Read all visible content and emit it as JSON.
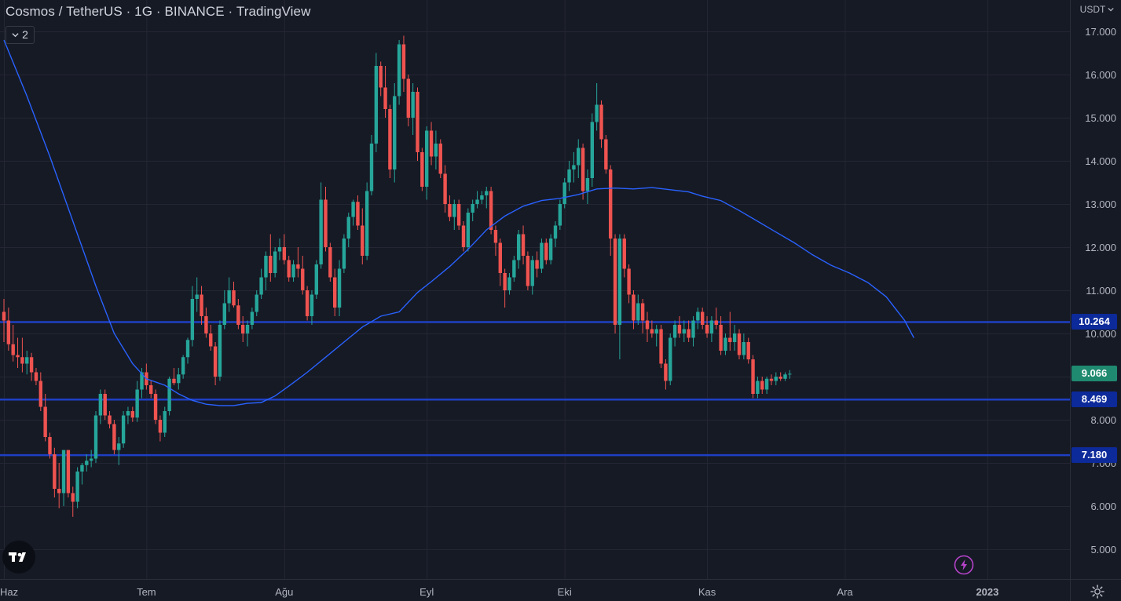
{
  "header": {
    "title": "Cosmos / TetherUS · 1G · BINANCE · TradingView",
    "indicator_count": "2",
    "currency": "USDT"
  },
  "colors": {
    "background": "#161a25",
    "grid": "#242733",
    "up": "#26a69a",
    "down": "#ef5350",
    "ma_line": "#2962ff",
    "hline": "#1e3fc4",
    "last_price_bg": "#1f8a70",
    "hline_label_bg": "#0d2a9a",
    "axis_text": "#b2b5be"
  },
  "icons": {
    "logo": "tradingview-logo-icon",
    "alert": "lightning-icon",
    "settings": "gear-icon",
    "chevron": "chevron-down-icon"
  },
  "chart_data": {
    "type": "candlestick",
    "title": "Cosmos / TetherUS · 1G · BINANCE · TradingView",
    "y_axis": {
      "ticks": [
        "17.000",
        "16.000",
        "15.000",
        "14.000",
        "13.000",
        "12.000",
        "11.000",
        "10.000",
        "8.000",
        "7.000",
        "6.000",
        "5.000"
      ],
      "tick_values": [
        17,
        16,
        15,
        14,
        13,
        12,
        11,
        10,
        8,
        7,
        6,
        5
      ],
      "range": [
        4.5,
        17.3
      ]
    },
    "x_axis": {
      "labels": [
        "Haz",
        "Tem",
        "Ağu",
        "Eyl",
        "Eki",
        "Kas",
        "Ara",
        "2023"
      ],
      "label_days": [
        0,
        31,
        61,
        92,
        122,
        153,
        183,
        214
      ]
    },
    "horizontal_lines": [
      10.264,
      8.469,
      7.18
    ],
    "labels": [
      {
        "text": "10.264",
        "value": 10.264,
        "kind": "line"
      },
      {
        "text": "9.066",
        "value": 9.066,
        "kind": "last"
      },
      {
        "text": "8.469",
        "value": 8.469,
        "kind": "line"
      },
      {
        "text": "7.180",
        "value": 7.18,
        "kind": "line"
      }
    ],
    "last_price": 9.066,
    "moving_average": [
      [
        0,
        16.8
      ],
      [
        5,
        15.5
      ],
      [
        10,
        14.1
      ],
      [
        15,
        12.6
      ],
      [
        20,
        11.1
      ],
      [
        24,
        10.0
      ],
      [
        28,
        9.3
      ],
      [
        31,
        8.95
      ],
      [
        35,
        8.8
      ],
      [
        38,
        8.6
      ],
      [
        41,
        8.45
      ],
      [
        44,
        8.36
      ],
      [
        47,
        8.33
      ],
      [
        50,
        8.33
      ],
      [
        53,
        8.38
      ],
      [
        56,
        8.4
      ],
      [
        59,
        8.55
      ],
      [
        62,
        8.78
      ],
      [
        66,
        9.1
      ],
      [
        70,
        9.45
      ],
      [
        74,
        9.8
      ],
      [
        78,
        10.15
      ],
      [
        82,
        10.4
      ],
      [
        86,
        10.5
      ],
      [
        90,
        10.95
      ],
      [
        93,
        11.2
      ],
      [
        97,
        11.55
      ],
      [
        101,
        11.95
      ],
      [
        105,
        12.4
      ],
      [
        109,
        12.72
      ],
      [
        113,
        12.95
      ],
      [
        117,
        13.08
      ],
      [
        121,
        13.13
      ],
      [
        125,
        13.22
      ],
      [
        129,
        13.35
      ],
      [
        133,
        13.37
      ],
      [
        137,
        13.35
      ],
      [
        141,
        13.38
      ],
      [
        145,
        13.33
      ],
      [
        149,
        13.28
      ],
      [
        152,
        13.18
      ],
      [
        156,
        13.08
      ],
      [
        160,
        12.85
      ],
      [
        164,
        12.6
      ],
      [
        168,
        12.35
      ],
      [
        172,
        12.1
      ],
      [
        176,
        11.82
      ],
      [
        180,
        11.58
      ],
      [
        184,
        11.4
      ],
      [
        188,
        11.18
      ],
      [
        192,
        10.85
      ],
      [
        196,
        10.3
      ],
      [
        198,
        9.9
      ]
    ],
    "ohlc": [
      {
        "o": 10.5,
        "h": 10.8,
        "l": 9.8,
        "c": 10.3
      },
      {
        "o": 10.3,
        "h": 10.6,
        "l": 9.6,
        "c": 9.75
      },
      {
        "o": 9.75,
        "h": 10.2,
        "l": 9.35,
        "c": 9.5
      },
      {
        "o": 9.5,
        "h": 9.9,
        "l": 9.2,
        "c": 9.45
      },
      {
        "o": 9.45,
        "h": 9.9,
        "l": 9.1,
        "c": 9.3
      },
      {
        "o": 9.3,
        "h": 9.6,
        "l": 9.05,
        "c": 9.45
      },
      {
        "o": 9.45,
        "h": 9.55,
        "l": 8.9,
        "c": 9.1
      },
      {
        "o": 9.1,
        "h": 9.2,
        "l": 8.8,
        "c": 8.9
      },
      {
        "o": 8.9,
        "h": 9.1,
        "l": 8.2,
        "c": 8.3
      },
      {
        "o": 8.3,
        "h": 8.6,
        "l": 7.5,
        "c": 7.6
      },
      {
        "o": 7.6,
        "h": 7.7,
        "l": 7.1,
        "c": 7.2
      },
      {
        "o": 7.2,
        "h": 7.35,
        "l": 6.2,
        "c": 6.4
      },
      {
        "o": 6.4,
        "h": 7.0,
        "l": 5.95,
        "c": 6.3
      },
      {
        "o": 6.3,
        "h": 7.3,
        "l": 6.0,
        "c": 7.3
      },
      {
        "o": 7.3,
        "h": 7.3,
        "l": 6.2,
        "c": 6.3
      },
      {
        "o": 6.3,
        "h": 6.45,
        "l": 5.75,
        "c": 6.1
      },
      {
        "o": 6.1,
        "h": 6.9,
        "l": 5.95,
        "c": 6.8
      },
      {
        "o": 6.8,
        "h": 7.0,
        "l": 6.5,
        "c": 6.95
      },
      {
        "o": 6.95,
        "h": 7.2,
        "l": 6.8,
        "c": 7.05
      },
      {
        "o": 7.05,
        "h": 7.3,
        "l": 6.9,
        "c": 7.1
      },
      {
        "o": 7.1,
        "h": 8.2,
        "l": 7.0,
        "c": 8.1
      },
      {
        "o": 8.1,
        "h": 8.7,
        "l": 7.9,
        "c": 8.6
      },
      {
        "o": 8.6,
        "h": 8.7,
        "l": 8.0,
        "c": 8.1
      },
      {
        "o": 8.1,
        "h": 8.2,
        "l": 7.8,
        "c": 7.9
      },
      {
        "o": 7.9,
        "h": 8.0,
        "l": 7.2,
        "c": 7.3
      },
      {
        "o": 7.3,
        "h": 7.6,
        "l": 6.95,
        "c": 7.45
      },
      {
        "o": 7.45,
        "h": 8.2,
        "l": 7.35,
        "c": 8.1
      },
      {
        "o": 8.1,
        "h": 8.3,
        "l": 7.9,
        "c": 8.2
      },
      {
        "o": 8.2,
        "h": 8.3,
        "l": 7.95,
        "c": 8.05
      },
      {
        "o": 8.05,
        "h": 8.9,
        "l": 7.95,
        "c": 8.7
      },
      {
        "o": 8.7,
        "h": 9.2,
        "l": 8.5,
        "c": 9.1
      },
      {
        "o": 9.1,
        "h": 9.3,
        "l": 8.7,
        "c": 8.8
      },
      {
        "o": 8.8,
        "h": 8.9,
        "l": 8.5,
        "c": 8.6
      },
      {
        "o": 8.6,
        "h": 8.7,
        "l": 7.9,
        "c": 8.0
      },
      {
        "o": 8.0,
        "h": 8.1,
        "l": 7.5,
        "c": 7.7
      },
      {
        "o": 7.7,
        "h": 8.3,
        "l": 7.6,
        "c": 8.2
      },
      {
        "o": 8.2,
        "h": 9.0,
        "l": 8.1,
        "c": 8.95
      },
      {
        "o": 8.95,
        "h": 9.2,
        "l": 8.8,
        "c": 8.85
      },
      {
        "o": 8.85,
        "h": 9.2,
        "l": 8.7,
        "c": 9.05
      },
      {
        "o": 9.05,
        "h": 9.5,
        "l": 8.95,
        "c": 9.45
      },
      {
        "o": 9.45,
        "h": 9.9,
        "l": 9.3,
        "c": 9.85
      },
      {
        "o": 9.85,
        "h": 11.1,
        "l": 9.7,
        "c": 10.8
      },
      {
        "o": 10.8,
        "h": 11.3,
        "l": 10.5,
        "c": 10.9
      },
      {
        "o": 10.9,
        "h": 11.1,
        "l": 10.2,
        "c": 10.4
      },
      {
        "o": 10.4,
        "h": 10.6,
        "l": 9.9,
        "c": 10.0
      },
      {
        "o": 10.0,
        "h": 10.2,
        "l": 9.6,
        "c": 9.7
      },
      {
        "o": 9.7,
        "h": 9.8,
        "l": 8.8,
        "c": 9.0
      },
      {
        "o": 9.0,
        "h": 10.3,
        "l": 8.9,
        "c": 10.2
      },
      {
        "o": 10.2,
        "h": 11.0,
        "l": 10.1,
        "c": 10.7
      },
      {
        "o": 10.7,
        "h": 11.3,
        "l": 10.5,
        "c": 11.0
      },
      {
        "o": 11.0,
        "h": 11.2,
        "l": 10.6,
        "c": 10.65
      },
      {
        "o": 10.65,
        "h": 10.8,
        "l": 10.1,
        "c": 10.2
      },
      {
        "o": 10.2,
        "h": 10.4,
        "l": 9.8,
        "c": 10.0
      },
      {
        "o": 10.0,
        "h": 10.3,
        "l": 9.7,
        "c": 10.2
      },
      {
        "o": 10.2,
        "h": 10.6,
        "l": 10.1,
        "c": 10.5
      },
      {
        "o": 10.5,
        "h": 11.0,
        "l": 10.4,
        "c": 10.9
      },
      {
        "o": 10.9,
        "h": 11.5,
        "l": 10.8,
        "c": 11.3
      },
      {
        "o": 11.3,
        "h": 11.9,
        "l": 11.0,
        "c": 11.8
      },
      {
        "o": 11.8,
        "h": 12.3,
        "l": 11.2,
        "c": 11.4
      },
      {
        "o": 11.4,
        "h": 12.0,
        "l": 11.3,
        "c": 11.9
      },
      {
        "o": 11.9,
        "h": 12.2,
        "l": 11.7,
        "c": 12.0
      },
      {
        "o": 12.0,
        "h": 12.3,
        "l": 11.6,
        "c": 11.7
      },
      {
        "o": 11.7,
        "h": 11.8,
        "l": 11.2,
        "c": 11.3
      },
      {
        "o": 11.3,
        "h": 11.7,
        "l": 11.2,
        "c": 11.6
      },
      {
        "o": 11.6,
        "h": 12.0,
        "l": 11.3,
        "c": 11.5
      },
      {
        "o": 11.5,
        "h": 11.8,
        "l": 10.9,
        "c": 11.0
      },
      {
        "o": 11.0,
        "h": 11.1,
        "l": 10.3,
        "c": 10.4
      },
      {
        "o": 10.4,
        "h": 11.0,
        "l": 10.2,
        "c": 10.9
      },
      {
        "o": 10.9,
        "h": 11.7,
        "l": 10.8,
        "c": 11.6
      },
      {
        "o": 11.6,
        "h": 13.5,
        "l": 11.5,
        "c": 13.1
      },
      {
        "o": 13.1,
        "h": 13.4,
        "l": 11.9,
        "c": 12.0
      },
      {
        "o": 12.0,
        "h": 12.1,
        "l": 11.2,
        "c": 11.3
      },
      {
        "o": 11.3,
        "h": 11.5,
        "l": 10.4,
        "c": 10.6
      },
      {
        "o": 10.6,
        "h": 11.7,
        "l": 10.4,
        "c": 11.5
      },
      {
        "o": 11.5,
        "h": 12.3,
        "l": 11.4,
        "c": 12.2
      },
      {
        "o": 12.2,
        "h": 12.8,
        "l": 12.0,
        "c": 12.7
      },
      {
        "o": 12.7,
        "h": 13.1,
        "l": 12.5,
        "c": 13.05
      },
      {
        "o": 13.05,
        "h": 13.2,
        "l": 12.4,
        "c": 12.5
      },
      {
        "o": 12.5,
        "h": 12.9,
        "l": 11.6,
        "c": 11.8
      },
      {
        "o": 11.8,
        "h": 13.5,
        "l": 11.7,
        "c": 13.3
      },
      {
        "o": 13.3,
        "h": 14.6,
        "l": 13.2,
        "c": 14.4
      },
      {
        "o": 14.4,
        "h": 16.5,
        "l": 14.2,
        "c": 16.2
      },
      {
        "o": 16.2,
        "h": 16.3,
        "l": 15.5,
        "c": 15.7
      },
      {
        "o": 15.7,
        "h": 16.2,
        "l": 15.0,
        "c": 15.2
      },
      {
        "o": 15.2,
        "h": 15.3,
        "l": 13.6,
        "c": 13.8
      },
      {
        "o": 13.8,
        "h": 15.8,
        "l": 13.5,
        "c": 15.5
      },
      {
        "o": 15.5,
        "h": 16.8,
        "l": 15.3,
        "c": 16.7
      },
      {
        "o": 16.7,
        "h": 16.9,
        "l": 15.6,
        "c": 15.9
      },
      {
        "o": 15.9,
        "h": 16.0,
        "l": 14.8,
        "c": 15.0
      },
      {
        "o": 15.0,
        "h": 15.8,
        "l": 14.6,
        "c": 15.6
      },
      {
        "o": 15.6,
        "h": 15.7,
        "l": 14.0,
        "c": 14.2
      },
      {
        "o": 14.2,
        "h": 14.3,
        "l": 13.3,
        "c": 13.4
      },
      {
        "o": 13.4,
        "h": 14.8,
        "l": 13.1,
        "c": 14.7
      },
      {
        "o": 14.7,
        "h": 14.9,
        "l": 13.9,
        "c": 14.1
      },
      {
        "o": 14.1,
        "h": 14.7,
        "l": 13.8,
        "c": 14.4
      },
      {
        "o": 14.4,
        "h": 14.5,
        "l": 13.6,
        "c": 13.7
      },
      {
        "o": 13.7,
        "h": 13.9,
        "l": 12.8,
        "c": 13.0
      },
      {
        "o": 13.0,
        "h": 13.2,
        "l": 12.6,
        "c": 12.7
      },
      {
        "o": 12.7,
        "h": 13.1,
        "l": 12.4,
        "c": 13.0
      },
      {
        "o": 13.0,
        "h": 13.1,
        "l": 12.4,
        "c": 12.5
      },
      {
        "o": 12.5,
        "h": 12.6,
        "l": 11.9,
        "c": 12.0
      },
      {
        "o": 12.0,
        "h": 12.9,
        "l": 11.9,
        "c": 12.8
      },
      {
        "o": 12.8,
        "h": 13.1,
        "l": 12.6,
        "c": 13.0
      },
      {
        "o": 13.0,
        "h": 13.3,
        "l": 12.9,
        "c": 13.1
      },
      {
        "o": 13.1,
        "h": 13.3,
        "l": 13.0,
        "c": 13.2
      },
      {
        "o": 13.2,
        "h": 13.4,
        "l": 12.9,
        "c": 13.3
      },
      {
        "o": 13.3,
        "h": 13.4,
        "l": 12.3,
        "c": 12.4
      },
      {
        "o": 12.4,
        "h": 12.5,
        "l": 11.8,
        "c": 12.1
      },
      {
        "o": 12.1,
        "h": 12.2,
        "l": 11.1,
        "c": 11.4
      },
      {
        "o": 11.4,
        "h": 11.5,
        "l": 10.6,
        "c": 11.0
      },
      {
        "o": 11.0,
        "h": 11.4,
        "l": 10.9,
        "c": 11.3
      },
      {
        "o": 11.3,
        "h": 11.8,
        "l": 11.2,
        "c": 11.7
      },
      {
        "o": 11.7,
        "h": 12.4,
        "l": 11.5,
        "c": 12.3
      },
      {
        "o": 12.3,
        "h": 12.5,
        "l": 11.6,
        "c": 11.8
      },
      {
        "o": 11.8,
        "h": 11.9,
        "l": 11.0,
        "c": 11.1
      },
      {
        "o": 11.1,
        "h": 11.8,
        "l": 10.9,
        "c": 11.7
      },
      {
        "o": 11.7,
        "h": 11.9,
        "l": 11.3,
        "c": 11.5
      },
      {
        "o": 11.5,
        "h": 12.2,
        "l": 11.4,
        "c": 12.1
      },
      {
        "o": 12.1,
        "h": 12.2,
        "l": 11.6,
        "c": 11.7
      },
      {
        "o": 11.7,
        "h": 12.3,
        "l": 11.6,
        "c": 12.2
      },
      {
        "o": 12.2,
        "h": 12.6,
        "l": 12.0,
        "c": 12.5
      },
      {
        "o": 12.5,
        "h": 13.1,
        "l": 12.4,
        "c": 13.0
      },
      {
        "o": 13.0,
        "h": 13.6,
        "l": 12.9,
        "c": 13.5
      },
      {
        "o": 13.5,
        "h": 14.0,
        "l": 13.3,
        "c": 13.8
      },
      {
        "o": 13.8,
        "h": 14.2,
        "l": 13.5,
        "c": 13.9
      },
      {
        "o": 13.9,
        "h": 14.5,
        "l": 13.6,
        "c": 14.3
      },
      {
        "o": 14.3,
        "h": 14.4,
        "l": 13.1,
        "c": 13.3
      },
      {
        "o": 13.3,
        "h": 13.8,
        "l": 13.0,
        "c": 13.6
      },
      {
        "o": 13.6,
        "h": 15.1,
        "l": 13.4,
        "c": 14.9
      },
      {
        "o": 14.9,
        "h": 15.8,
        "l": 14.7,
        "c": 15.3
      },
      {
        "o": 15.3,
        "h": 15.4,
        "l": 14.3,
        "c": 14.5
      },
      {
        "o": 14.5,
        "h": 14.6,
        "l": 13.7,
        "c": 13.8
      },
      {
        "o": 13.8,
        "h": 13.9,
        "l": 11.8,
        "c": 12.2
      },
      {
        "o": 12.2,
        "h": 12.3,
        "l": 10.0,
        "c": 10.2
      },
      {
        "o": 10.2,
        "h": 12.3,
        "l": 9.4,
        "c": 12.2
      },
      {
        "o": 12.2,
        "h": 12.3,
        "l": 11.3,
        "c": 11.5
      },
      {
        "o": 11.5,
        "h": 11.6,
        "l": 10.7,
        "c": 10.9
      },
      {
        "o": 10.9,
        "h": 11.0,
        "l": 10.1,
        "c": 10.3
      },
      {
        "o": 10.3,
        "h": 10.9,
        "l": 10.2,
        "c": 10.7
      },
      {
        "o": 10.7,
        "h": 10.8,
        "l": 10.0,
        "c": 10.3
      },
      {
        "o": 10.3,
        "h": 10.5,
        "l": 9.8,
        "c": 10.1
      },
      {
        "o": 10.1,
        "h": 10.3,
        "l": 9.9,
        "c": 10.0
      },
      {
        "o": 10.0,
        "h": 10.2,
        "l": 9.7,
        "c": 10.1
      },
      {
        "o": 10.1,
        "h": 10.2,
        "l": 9.2,
        "c": 9.3
      },
      {
        "o": 9.3,
        "h": 9.4,
        "l": 8.7,
        "c": 8.9
      },
      {
        "o": 8.9,
        "h": 10.0,
        "l": 8.8,
        "c": 9.9
      },
      {
        "o": 9.9,
        "h": 10.3,
        "l": 9.7,
        "c": 10.2
      },
      {
        "o": 10.2,
        "h": 10.4,
        "l": 9.9,
        "c": 10.0
      },
      {
        "o": 10.0,
        "h": 10.3,
        "l": 9.8,
        "c": 10.1
      },
      {
        "o": 10.1,
        "h": 10.3,
        "l": 9.8,
        "c": 9.9
      },
      {
        "o": 9.9,
        "h": 10.4,
        "l": 9.7,
        "c": 10.3
      },
      {
        "o": 10.3,
        "h": 10.6,
        "l": 10.1,
        "c": 10.5
      },
      {
        "o": 10.5,
        "h": 10.6,
        "l": 10.1,
        "c": 10.2
      },
      {
        "o": 10.2,
        "h": 10.4,
        "l": 9.9,
        "c": 10.0
      },
      {
        "o": 10.0,
        "h": 10.4,
        "l": 9.8,
        "c": 10.3
      },
      {
        "o": 10.3,
        "h": 10.6,
        "l": 10.1,
        "c": 10.2
      },
      {
        "o": 10.2,
        "h": 10.4,
        "l": 9.5,
        "c": 9.6
      },
      {
        "o": 9.6,
        "h": 10.0,
        "l": 9.5,
        "c": 9.9
      },
      {
        "o": 9.9,
        "h": 10.5,
        "l": 9.6,
        "c": 9.8
      },
      {
        "o": 9.8,
        "h": 10.2,
        "l": 9.6,
        "c": 10.0
      },
      {
        "o": 10.0,
        "h": 10.1,
        "l": 9.4,
        "c": 9.5
      },
      {
        "o": 9.5,
        "h": 10.0,
        "l": 9.4,
        "c": 9.8
      },
      {
        "o": 9.8,
        "h": 9.9,
        "l": 9.3,
        "c": 9.4
      },
      {
        "o": 9.4,
        "h": 9.5,
        "l": 8.5,
        "c": 8.6
      },
      {
        "o": 8.6,
        "h": 9.0,
        "l": 8.5,
        "c": 8.9
      },
      {
        "o": 8.9,
        "h": 9.0,
        "l": 8.6,
        "c": 8.7
      },
      {
        "o": 8.7,
        "h": 9.0,
        "l": 8.6,
        "c": 8.95
      },
      {
        "o": 8.95,
        "h": 9.05,
        "l": 8.8,
        "c": 8.9
      },
      {
        "o": 8.9,
        "h": 9.1,
        "l": 8.8,
        "c": 9.0
      },
      {
        "o": 9.0,
        "h": 9.1,
        "l": 8.9,
        "c": 8.95
      },
      {
        "o": 8.95,
        "h": 9.1,
        "l": 8.9,
        "c": 9.05
      },
      {
        "o": 9.05,
        "h": 9.15,
        "l": 8.95,
        "c": 9.066
      }
    ]
  }
}
